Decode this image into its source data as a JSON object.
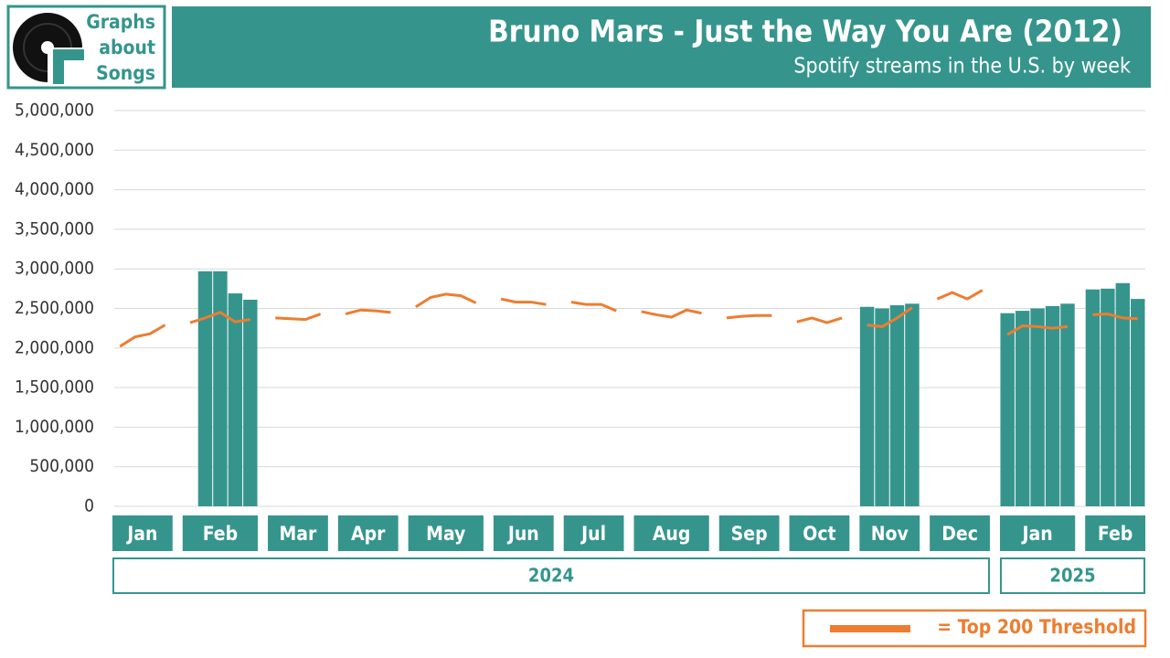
{
  "logo": [
    "Graphs",
    "about",
    "Songs"
  ],
  "chart_data": {
    "type": "bar",
    "title": "Bruno Mars - Just the Way You Are (2012)",
    "subtitle": "Spotify streams in the U.S. by week",
    "categories": [
      "Jan",
      "Jan",
      "Jan",
      "Jan",
      "Feb",
      "Feb",
      "Feb",
      "Feb",
      "Feb",
      "Mar",
      "Mar",
      "Mar",
      "Mar",
      "Apr",
      "Apr",
      "Apr",
      "Apr",
      "May",
      "May",
      "May",
      "May",
      "May",
      "Jun",
      "Jun",
      "Jun",
      "Jun",
      "Jul",
      "Jul",
      "Jul",
      "Jul",
      "Aug",
      "Aug",
      "Aug",
      "Aug",
      "Aug",
      "Sep",
      "Sep",
      "Sep",
      "Sep",
      "Oct",
      "Oct",
      "Oct",
      "Oct",
      "Nov",
      "Nov",
      "Nov",
      "Nov",
      "Dec",
      "Dec",
      "Dec",
      "Dec",
      "Jan",
      "Jan",
      "Jan",
      "Jan",
      "Jan",
      "Feb",
      "Feb",
      "Feb",
      "Feb"
    ],
    "years": [
      "2024",
      "2025"
    ],
    "series": [
      {
        "color": "#35958d",
        "values": [
          null,
          null,
          null,
          null,
          null,
          2970000,
          2970000,
          2690000,
          2610000,
          null,
          null,
          null,
          null,
          null,
          null,
          null,
          null,
          null,
          null,
          null,
          null,
          null,
          null,
          null,
          null,
          null,
          null,
          null,
          null,
          null,
          null,
          null,
          null,
          null,
          null,
          null,
          null,
          null,
          null,
          null,
          null,
          null,
          null,
          2520000,
          2500000,
          2540000,
          2560000,
          null,
          null,
          null,
          null,
          2440000,
          2470000,
          2500000,
          2530000,
          2560000,
          2740000,
          2750000,
          2820000,
          2620000
        ]
      },
      {
        "name": "= Top 200 Threshold",
        "type": "line",
        "color": "#ed7d31",
        "values": [
          2020000,
          2140000,
          2180000,
          2290000,
          2320000,
          2380000,
          2450000,
          2330000,
          2360000,
          2380000,
          2370000,
          2360000,
          2430000,
          2430000,
          2480000,
          2470000,
          2450000,
          2520000,
          2640000,
          2680000,
          2660000,
          2570000,
          2620000,
          2580000,
          2580000,
          2550000,
          2580000,
          2550000,
          2550000,
          2470000,
          2460000,
          2420000,
          2390000,
          2480000,
          2440000,
          2380000,
          2400000,
          2410000,
          2410000,
          2330000,
          2380000,
          2320000,
          2380000,
          2290000,
          2270000,
          2380000,
          2510000,
          2620000,
          2700000,
          2620000,
          2730000,
          2170000,
          2280000,
          2270000,
          2250000,
          2270000,
          2420000,
          2430000,
          2380000,
          2370000
        ]
      }
    ],
    "ylim": [
      0,
      5000000
    ],
    "yticks": [
      0,
      {
        "value": 500000,
        "label": "500,000"
      },
      {
        "value": 1000000,
        "label": "1,000,000"
      },
      {
        "value": 1500000,
        "label": "1,500,000"
      },
      {
        "value": 2000000,
        "label": "2,000,000"
      },
      {
        "value": 2500000,
        "label": "2,500,000"
      },
      {
        "value": 3000000,
        "label": "3,000,000"
      },
      {
        "value": 3500000,
        "label": "3,500,000"
      },
      {
        "value": 4000000,
        "label": "4,000,000"
      },
      {
        "value": 4500000,
        "label": "4,500,000"
      },
      {
        "value": 5000000,
        "label": "5,000,000"
      }
    ],
    "grid": true
  }
}
